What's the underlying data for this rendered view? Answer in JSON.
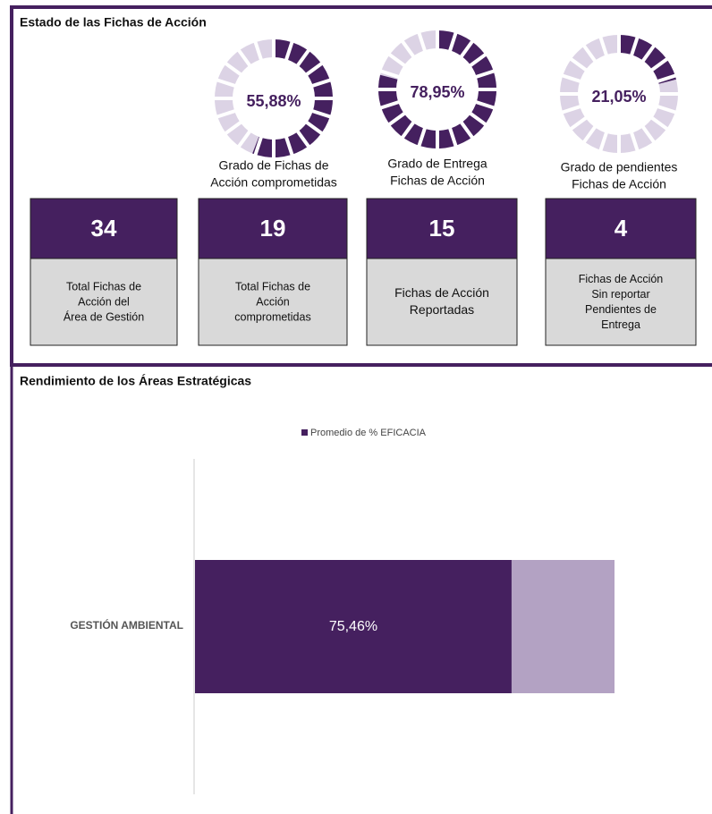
{
  "title": "Estado de las Fichas de Acción",
  "chart_data": [
    {
      "type": "donut",
      "values": [
        55.88
      ],
      "value_labels": [
        "55,88%"
      ],
      "label": [
        "Grado de Fichas de",
        "Acción comprometidas"
      ],
      "color": "#45205f"
    },
    {
      "type": "donut",
      "values": [
        78.95
      ],
      "value_labels": [
        "78,95%"
      ],
      "label": [
        "Grado de Entrega",
        "Fichas de Acción"
      ],
      "color": "#45205f"
    },
    {
      "type": "donut",
      "values": [
        21.05
      ],
      "value_labels": [
        "21,05%"
      ],
      "label": [
        "Grado de pendientes",
        "Fichas de Acción"
      ],
      "color": "#45205f"
    },
    {
      "type": "bar",
      "title": "Rendimiento de los Áreas Estratégicas",
      "categories": [
        "GESTIÓN AMBIENTAL"
      ],
      "series": [
        {
          "name": "Promedio de % EFICACIA",
          "color": "#45205f",
          "values": [
            75.46
          ],
          "value_labels": [
            "75,46%"
          ]
        }
      ],
      "xlim": [
        0,
        100
      ]
    }
  ],
  "cards": [
    {
      "value": 34,
      "label": [
        "Total Fichas de",
        "Acción del",
        "Área de Gestión"
      ]
    },
    {
      "value": 19,
      "label": [
        "Total Fichas de",
        "Acción",
        "comprometidas"
      ]
    },
    {
      "value": 15,
      "label": [
        "Fichas de Acción",
        "Reportadas"
      ]
    },
    {
      "value": 4,
      "label": [
        "Fichas de Acción",
        "Sin reportar",
        "Pendientes de",
        "Entrega"
      ]
    }
  ]
}
